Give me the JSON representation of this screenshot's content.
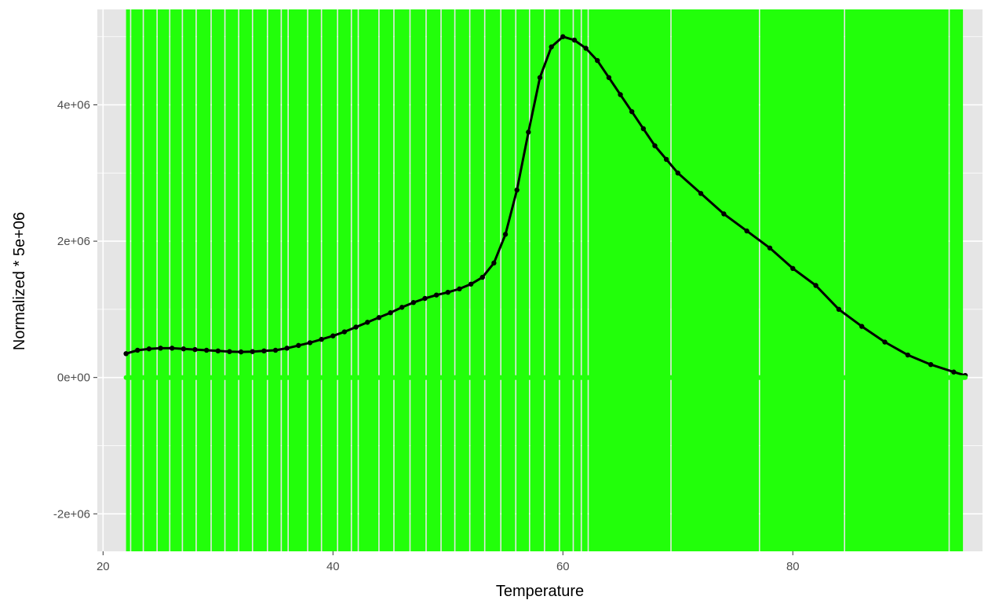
{
  "chart_data": {
    "type": "line",
    "title": "",
    "xlabel": "Temperature",
    "ylabel": "Normalized * 5e+06",
    "xlim": [
      19.5,
      96.5
    ],
    "ylim": [
      -2550000,
      5400000
    ],
    "x_ticks": [
      20,
      40,
      60,
      80
    ],
    "x_tick_labels": [
      "20",
      "40",
      "60",
      "80"
    ],
    "y_ticks": [
      -2000000,
      0,
      2000000,
      4000000
    ],
    "y_tick_labels": [
      "-2e+06",
      "0e+00",
      "2e+06",
      "4e+06"
    ],
    "grid": true,
    "legend": "none",
    "colors": {
      "panel_background": "#e5e5e5",
      "grid": "#ffffff",
      "main_series": "#000000",
      "vertical_lines": "#22ff0a"
    },
    "series": [
      {
        "color": "#000000",
        "x": [
          22,
          23,
          24,
          25,
          26,
          27,
          28,
          29,
          30,
          31,
          32,
          33,
          34,
          35,
          36,
          37,
          38,
          39,
          40,
          41,
          42,
          43,
          44,
          45,
          46,
          47,
          48,
          49,
          50,
          51,
          52,
          53,
          54,
          55,
          56,
          57,
          58,
          59,
          60,
          61,
          62,
          63,
          64,
          65,
          66,
          67,
          68,
          69,
          70,
          72,
          74,
          76,
          78,
          80,
          82,
          84,
          86,
          88,
          90,
          92,
          94,
          95
        ],
        "y": [
          350000,
          400000,
          420000,
          430000,
          430000,
          420000,
          410000,
          400000,
          390000,
          380000,
          375000,
          380000,
          390000,
          400000,
          430000,
          470000,
          510000,
          560000,
          610000,
          670000,
          740000,
          810000,
          880000,
          950000,
          1030000,
          1100000,
          1160000,
          1210000,
          1250000,
          1300000,
          1370000,
          1470000,
          1680000,
          2100000,
          2750000,
          3600000,
          4400000,
          4850000,
          5000000,
          4950000,
          4830000,
          4650000,
          4400000,
          4150000,
          3900000,
          3650000,
          3400000,
          3200000,
          3000000,
          2700000,
          2400000,
          2150000,
          1900000,
          1600000,
          1350000,
          1000000,
          750000,
          520000,
          330000,
          190000,
          80000,
          30000
        ]
      },
      {
        "color": "#22ff0a",
        "x": [
          22,
          95
        ],
        "y": [
          0,
          0
        ]
      }
    ],
    "vertical_lines": {
      "color": "#22ff0a",
      "x_range": [
        22,
        94.8
      ],
      "gaps_at": [
        22.4,
        23.5,
        24.7,
        25.8,
        26.9,
        28.1,
        29.4,
        30.6,
        31.8,
        33.0,
        34.3,
        35.5,
        36.1,
        37.8,
        39.0,
        40.4,
        41.6,
        42.2,
        44.0,
        45.3,
        46.7,
        48.1,
        49.4,
        50.6,
        51.9,
        53.2,
        54.6,
        55.9,
        57.1,
        58.4,
        59.7,
        60.9,
        61.6,
        62.2,
        69.4,
        77.1,
        84.5,
        93.6
      ]
    }
  }
}
